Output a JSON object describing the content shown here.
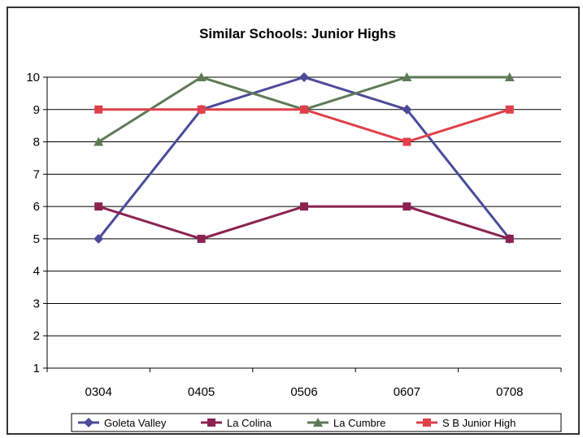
{
  "chart_data": {
    "type": "line",
    "title": "Similar Schools: Junior Highs",
    "xlabel": "",
    "ylabel": "",
    "categories": [
      "0304",
      "0405",
      "0506",
      "0607",
      "0708"
    ],
    "y_ticks": [
      "1",
      "2",
      "3",
      "4",
      "5",
      "6",
      "7",
      "8",
      "9",
      "10"
    ],
    "ylim": [
      1,
      10
    ],
    "grid": "horizontal",
    "legend_position": "bottom",
    "series": [
      {
        "name": "Goleta Valley",
        "values": [
          5,
          9,
          10,
          9,
          5
        ],
        "color": "#4b4b9a",
        "marker": "diamond"
      },
      {
        "name": "La Colina",
        "values": [
          6,
          5,
          6,
          6,
          5
        ],
        "color": "#8b2252",
        "marker": "square"
      },
      {
        "name": "La Cumbre",
        "values": [
          8,
          10,
          9,
          10,
          10
        ],
        "color": "#5e7a55",
        "marker": "triangle"
      },
      {
        "name": "S B Junior High",
        "values": [
          9,
          9,
          9,
          8,
          9
        ],
        "color": "#e0404a",
        "marker": "square"
      }
    ]
  }
}
